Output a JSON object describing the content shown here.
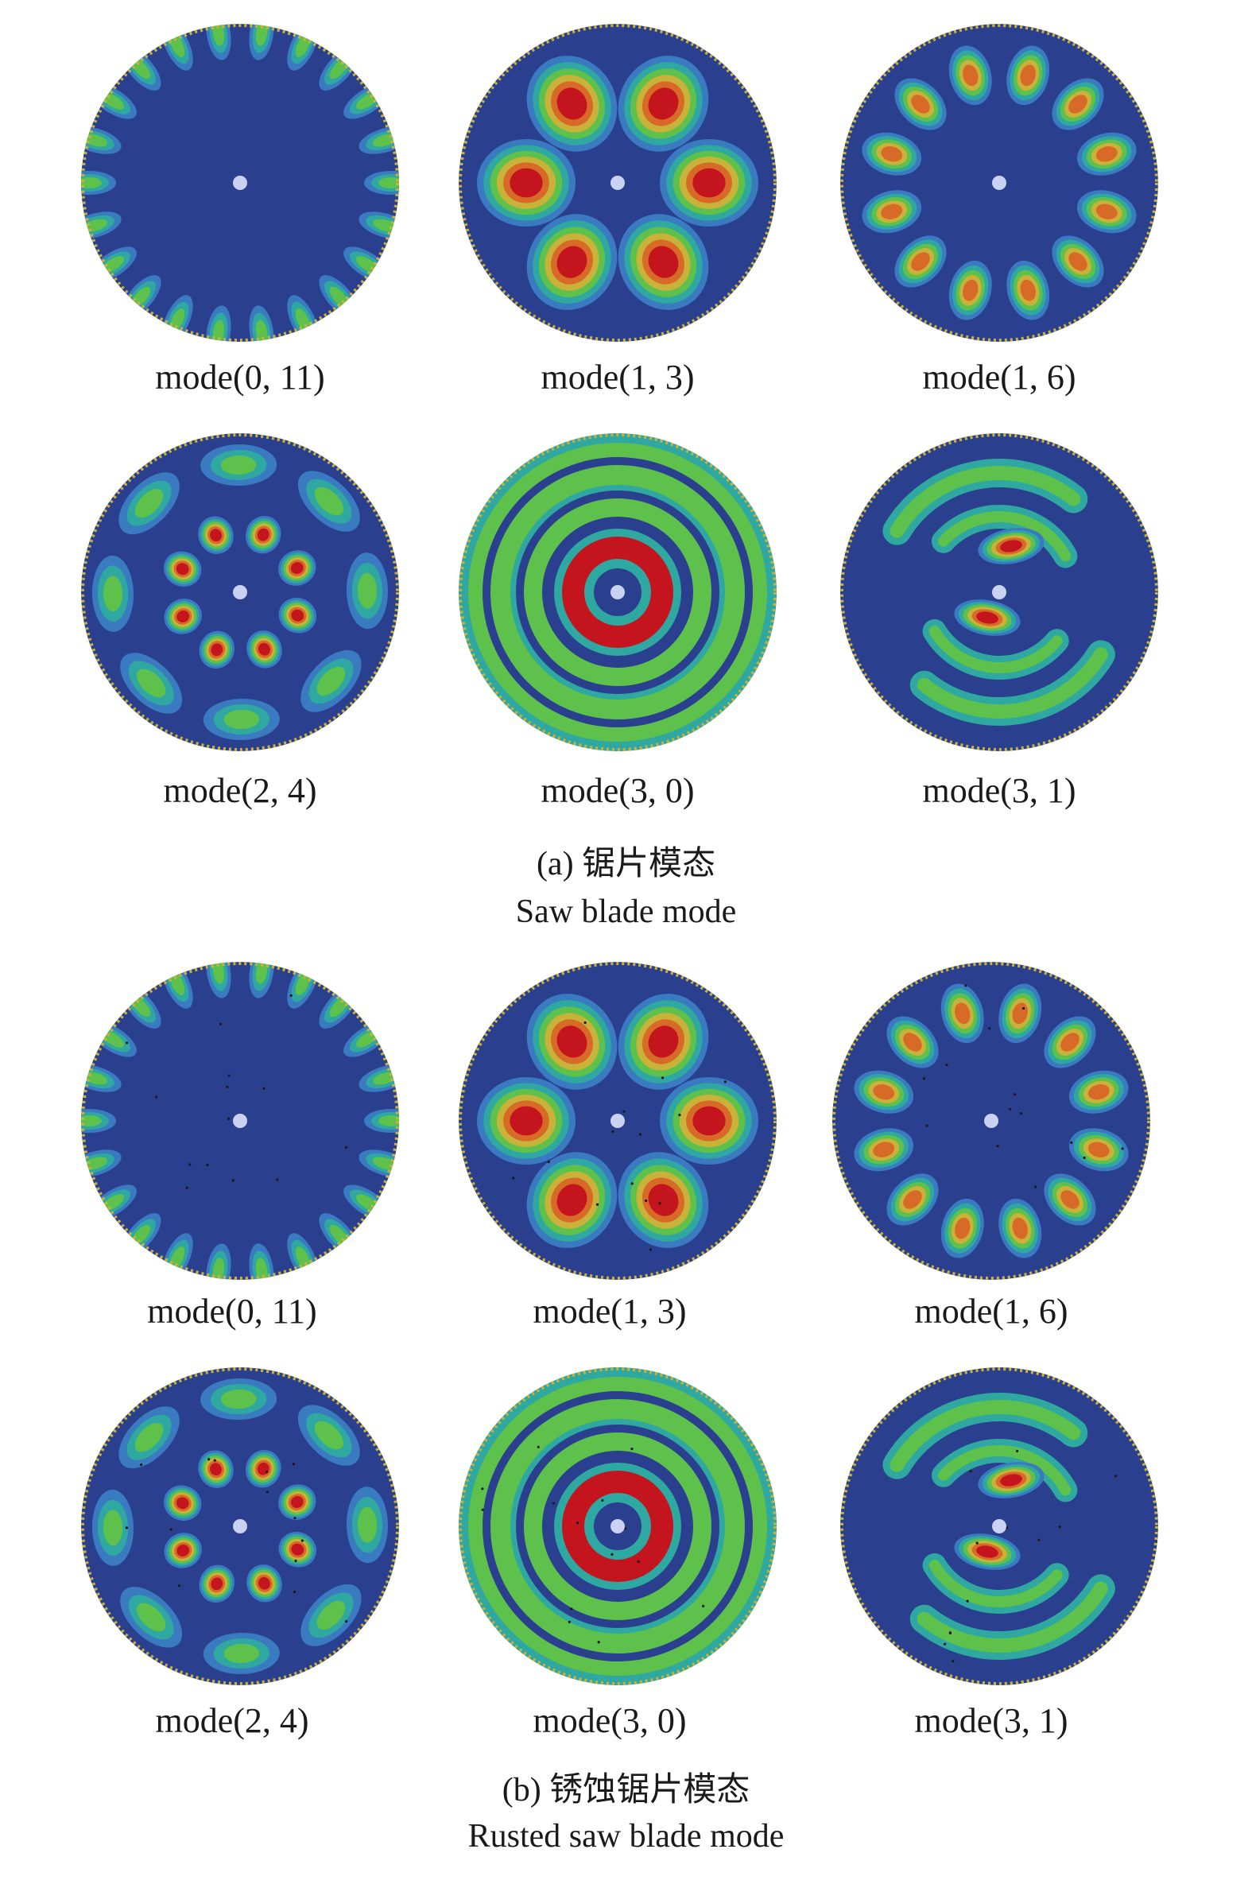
{
  "colors": {
    "background": "#ffffff",
    "node": "#2b3f8f",
    "low": "#3a7ac0",
    "mid_low": "#2ea8a0",
    "mid": "#5ec14c",
    "mid_high": "#c9b23a",
    "high": "#d86a28",
    "peak": "#c4141e",
    "hub": "#c9d2f2"
  },
  "section_a": {
    "panels": [
      {
        "label": "mode(0, 11)",
        "pattern": "edge",
        "n": 22
      },
      {
        "label": "mode(1, 3)",
        "pattern": "lobes",
        "n": 6
      },
      {
        "label": "mode(1, 6)",
        "pattern": "lobes",
        "n": 12
      },
      {
        "label": "mode(2, 4)",
        "pattern": "two-ring",
        "n": 8
      },
      {
        "label": "mode(3, 0)",
        "pattern": "rings",
        "n": 0
      },
      {
        "label": "mode(3, 1)",
        "pattern": "swirl",
        "n": 2
      }
    ],
    "caption_cn": "(a) 锯片模态",
    "caption_en": "Saw blade mode"
  },
  "section_b": {
    "panels": [
      {
        "label": "mode(0, 11)",
        "pattern": "edge",
        "n": 22
      },
      {
        "label": "mode(1, 3)",
        "pattern": "lobes",
        "n": 6
      },
      {
        "label": "mode(1, 6)",
        "pattern": "lobes",
        "n": 12
      },
      {
        "label": "mode(2, 4)",
        "pattern": "two-ring",
        "n": 8
      },
      {
        "label": "mode(3, 0)",
        "pattern": "rings",
        "n": 0
      },
      {
        "label": "mode(3, 1)",
        "pattern": "swirl",
        "n": 2
      }
    ],
    "caption_cn": "(b) 锈蚀锯片模态",
    "caption_en": "Rusted saw blade mode"
  }
}
